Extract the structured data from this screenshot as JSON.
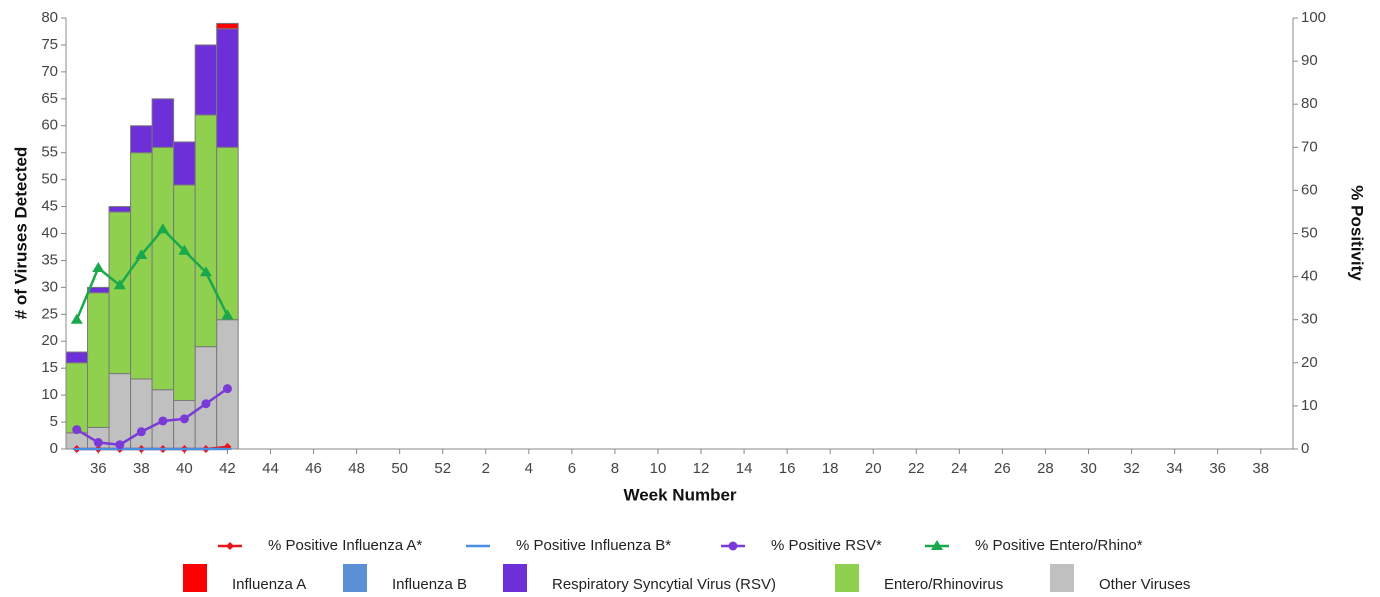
{
  "chart_data": {
    "type": "bar",
    "x_label": "Week Number",
    "y_label": "# of Viruses Detected",
    "y2_label": "% Positivity",
    "categories": [
      null,
      "36",
      null,
      "38",
      null,
      "40",
      null,
      "42",
      null,
      "44",
      null,
      "46",
      null,
      "48",
      null,
      "50",
      null,
      "52",
      null,
      "2",
      null,
      "4",
      null,
      "6",
      null,
      "8",
      null,
      "10",
      null,
      "12",
      null,
      "14",
      null,
      "16",
      null,
      "18",
      null,
      "20",
      null,
      "22",
      null,
      "24",
      null,
      "26",
      null,
      "28",
      null,
      "30",
      null,
      "32",
      null,
      "34",
      null,
      "36",
      null,
      "38",
      null
    ],
    "ylim": [
      0,
      80
    ],
    "yticks": [
      0,
      5,
      10,
      15,
      20,
      25,
      30,
      35,
      40,
      45,
      50,
      55,
      60,
      65,
      70,
      75,
      80
    ],
    "y2lim": [
      0,
      100
    ],
    "y2ticks": [
      0,
      10,
      20,
      30,
      40,
      50,
      60,
      70,
      80,
      90,
      100
    ],
    "series": [
      {
        "name": "% Positive Influenza A*",
        "type": "line",
        "axis": "y2",
        "marker": "diamond",
        "color": "#e8141c",
        "values": [
          0,
          0,
          0,
          0,
          0,
          0,
          0,
          0.5,
          null,
          null,
          null,
          null,
          null,
          null,
          null,
          null,
          null,
          null,
          null,
          null,
          null,
          null,
          null,
          null,
          null,
          null,
          null,
          null,
          null,
          null,
          null,
          null,
          null,
          null,
          null,
          null,
          null,
          null,
          null,
          null,
          null,
          null,
          null,
          null,
          null,
          null,
          null,
          null,
          null,
          null,
          null,
          null,
          null,
          null,
          null,
          null,
          null
        ]
      },
      {
        "name": "% Positive Influenza B*",
        "type": "line",
        "axis": "y2",
        "marker": "dash",
        "color": "#4a90e2",
        "values": [
          0,
          0,
          0,
          0,
          0,
          0,
          0,
          0,
          null,
          null,
          null,
          null,
          null,
          null,
          null,
          null,
          null,
          null,
          null,
          null,
          null,
          null,
          null,
          null,
          null,
          null,
          null,
          null,
          null,
          null,
          null,
          null,
          null,
          null,
          null,
          null,
          null,
          null,
          null,
          null,
          null,
          null,
          null,
          null,
          null,
          null,
          null,
          null,
          null,
          null,
          null,
          null,
          null,
          null,
          null,
          null,
          null
        ]
      },
      {
        "name": "% Positive RSV*",
        "type": "line",
        "axis": "y2",
        "marker": "circle",
        "color": "#7a3ad8",
        "values": [
          4.5,
          1.5,
          1,
          4,
          6.5,
          7,
          10.5,
          14,
          null,
          null,
          null,
          null,
          null,
          null,
          null,
          null,
          null,
          null,
          null,
          null,
          null,
          null,
          null,
          null,
          null,
          null,
          null,
          null,
          null,
          null,
          null,
          null,
          null,
          null,
          null,
          null,
          null,
          null,
          null,
          null,
          null,
          null,
          null,
          null,
          null,
          null,
          null,
          null,
          null,
          null,
          null,
          null,
          null,
          null,
          null,
          null,
          null
        ]
      },
      {
        "name": "% Positive Entero/Rhino*",
        "type": "line",
        "axis": "y2",
        "marker": "triangle",
        "color": "#1aa84c",
        "values": [
          30,
          42,
          38,
          45,
          51,
          46,
          41,
          31,
          null,
          null,
          null,
          null,
          null,
          null,
          null,
          null,
          null,
          null,
          null,
          null,
          null,
          null,
          null,
          null,
          null,
          null,
          null,
          null,
          null,
          null,
          null,
          null,
          null,
          null,
          null,
          null,
          null,
          null,
          null,
          null,
          null,
          null,
          null,
          null,
          null,
          null,
          null,
          null,
          null,
          null,
          null,
          null,
          null,
          null,
          null,
          null,
          null
        ]
      },
      {
        "name": "Influenza A",
        "type": "bar",
        "color": "#ff0000",
        "values": [
          0,
          0,
          0,
          0,
          0,
          0,
          0,
          1,
          null,
          null,
          null,
          null,
          null,
          null,
          null,
          null,
          null,
          null,
          null,
          null,
          null,
          null,
          null,
          null,
          null,
          null,
          null,
          null,
          null,
          null,
          null,
          null,
          null,
          null,
          null,
          null,
          null,
          null,
          null,
          null,
          null,
          null,
          null,
          null,
          null,
          null,
          null,
          null,
          null,
          null,
          null,
          null,
          null,
          null,
          null,
          null,
          null
        ]
      },
      {
        "name": "Influenza B",
        "type": "bar",
        "color": "#5b8fd6",
        "values": [
          0,
          0,
          0,
          0,
          0,
          0,
          0,
          0,
          null,
          null,
          null,
          null,
          null,
          null,
          null,
          null,
          null,
          null,
          null,
          null,
          null,
          null,
          null,
          null,
          null,
          null,
          null,
          null,
          null,
          null,
          null,
          null,
          null,
          null,
          null,
          null,
          null,
          null,
          null,
          null,
          null,
          null,
          null,
          null,
          null,
          null,
          null,
          null,
          null,
          null,
          null,
          null,
          null,
          null,
          null,
          null,
          null
        ]
      },
      {
        "name": "Respiratory Syncytial Virus (RSV)",
        "type": "bar",
        "color": "#6c2fd8",
        "values": [
          2,
          1,
          1,
          5,
          9,
          8,
          13,
          22,
          null,
          null,
          null,
          null,
          null,
          null,
          null,
          null,
          null,
          null,
          null,
          null,
          null,
          null,
          null,
          null,
          null,
          null,
          null,
          null,
          null,
          null,
          null,
          null,
          null,
          null,
          null,
          null,
          null,
          null,
          null,
          null,
          null,
          null,
          null,
          null,
          null,
          null,
          null,
          null,
          null,
          null,
          null,
          null,
          null,
          null,
          null,
          null,
          null
        ]
      },
      {
        "name": "Entero/Rhinovirus",
        "type": "bar",
        "color": "#8fd14f",
        "values": [
          13,
          25,
          30,
          42,
          45,
          40,
          43,
          32,
          null,
          null,
          null,
          null,
          null,
          null,
          null,
          null,
          null,
          null,
          null,
          null,
          null,
          null,
          null,
          null,
          null,
          null,
          null,
          null,
          null,
          null,
          null,
          null,
          null,
          null,
          null,
          null,
          null,
          null,
          null,
          null,
          null,
          null,
          null,
          null,
          null,
          null,
          null,
          null,
          null,
          null,
          null,
          null,
          null,
          null,
          null,
          null,
          null
        ]
      },
      {
        "name": "Other Viruses",
        "type": "bar",
        "color": "#c0c0c0",
        "values": [
          3,
          4,
          14,
          13,
          11,
          9,
          19,
          24,
          null,
          null,
          null,
          null,
          null,
          null,
          null,
          null,
          null,
          null,
          null,
          null,
          null,
          null,
          null,
          null,
          null,
          null,
          null,
          null,
          null,
          null,
          null,
          null,
          null,
          null,
          null,
          null,
          null,
          null,
          null,
          null,
          null,
          null,
          null,
          null,
          null,
          null,
          null,
          null,
          null,
          null,
          null,
          null,
          null,
          null,
          null,
          null,
          null
        ]
      }
    ]
  }
}
